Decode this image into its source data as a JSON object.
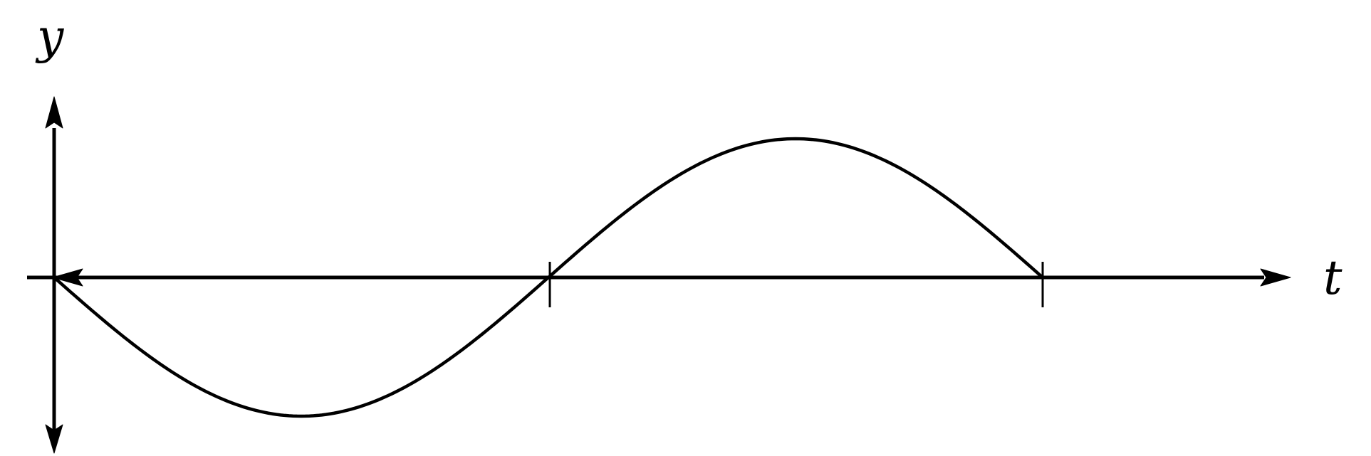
{
  "diagram": {
    "y_axis_label": "y",
    "t_axis_label": "t",
    "curve": {
      "shape": "negative sine",
      "periods": 1
    },
    "tick_marks": 2,
    "line_color": "#000000",
    "background_color": "#ffffff"
  }
}
